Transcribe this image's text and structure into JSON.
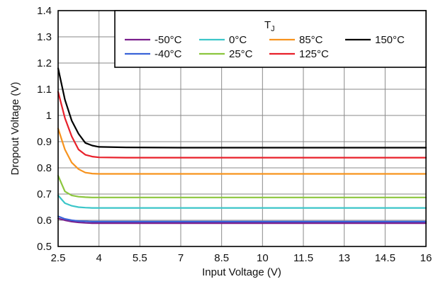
{
  "chart_data": {
    "type": "line",
    "title": "",
    "xlabel": "Input Voltage (V)",
    "ylabel": "Dropout Voltage (V)",
    "xlim": [
      2.5,
      16
    ],
    "ylim": [
      0.5,
      1.4
    ],
    "x_ticks": [
      "2.5",
      "4",
      "5.5",
      "7",
      "8.5",
      "10",
      "11.5",
      "13",
      "14.5",
      "16"
    ],
    "y_ticks": [
      "0.5",
      "0.6",
      "0.7",
      "0.8",
      "0.9",
      "1",
      "1.1",
      "1.2",
      "1.3",
      "1.4"
    ],
    "grid": true,
    "legend": {
      "title": "T",
      "title_subscript": "J",
      "placement": "top-right"
    },
    "series": [
      {
        "name": "-50°C",
        "color": "#7a1f8c",
        "x": [
          2.5,
          2.75,
          3.0,
          3.25,
          3.5,
          3.75,
          4.0,
          5.0,
          7.0,
          10.0,
          13.0,
          16.0
        ],
        "y": [
          0.607,
          0.6,
          0.595,
          0.592,
          0.59,
          0.589,
          0.589,
          0.589,
          0.589,
          0.589,
          0.589,
          0.589
        ]
      },
      {
        "name": "-40°C",
        "color": "#3a63d8",
        "x": [
          2.5,
          2.75,
          3.0,
          3.25,
          3.5,
          3.75,
          4.0,
          5.0,
          7.0,
          10.0,
          13.0,
          16.0
        ],
        "y": [
          0.615,
          0.605,
          0.6,
          0.597,
          0.596,
          0.595,
          0.595,
          0.595,
          0.595,
          0.595,
          0.595,
          0.595
        ]
      },
      {
        "name": "0°C",
        "color": "#3cc6c9",
        "x": [
          2.5,
          2.75,
          3.0,
          3.25,
          3.5,
          3.75,
          4.0,
          5.0,
          7.0,
          10.0,
          13.0,
          16.0
        ],
        "y": [
          0.695,
          0.665,
          0.655,
          0.65,
          0.648,
          0.647,
          0.647,
          0.647,
          0.647,
          0.647,
          0.647,
          0.647
        ]
      },
      {
        "name": "25°C",
        "color": "#8cc63e",
        "x": [
          2.5,
          2.75,
          3.0,
          3.25,
          3.5,
          3.75,
          4.0,
          5.0,
          7.0,
          10.0,
          13.0,
          16.0
        ],
        "y": [
          0.77,
          0.71,
          0.695,
          0.69,
          0.688,
          0.687,
          0.687,
          0.687,
          0.687,
          0.687,
          0.687,
          0.687
        ]
      },
      {
        "name": "85°C",
        "color": "#f7931e",
        "x": [
          2.5,
          2.75,
          3.0,
          3.25,
          3.5,
          3.75,
          4.0,
          5.0,
          7.0,
          10.0,
          13.0,
          16.0
        ],
        "y": [
          0.95,
          0.87,
          0.82,
          0.795,
          0.782,
          0.778,
          0.777,
          0.777,
          0.777,
          0.777,
          0.777,
          0.777
        ]
      },
      {
        "name": "125°C",
        "color": "#e8202a",
        "x": [
          2.5,
          2.75,
          3.0,
          3.25,
          3.5,
          3.75,
          4.0,
          5.0,
          7.0,
          10.0,
          13.0,
          16.0
        ],
        "y": [
          1.09,
          0.99,
          0.92,
          0.87,
          0.85,
          0.843,
          0.84,
          0.839,
          0.839,
          0.839,
          0.839,
          0.839
        ]
      },
      {
        "name": "150°C",
        "color": "#000000",
        "x": [
          2.5,
          2.75,
          3.0,
          3.25,
          3.5,
          3.75,
          4.0,
          5.0,
          7.0,
          10.0,
          13.0,
          16.0
        ],
        "y": [
          1.18,
          1.06,
          0.98,
          0.93,
          0.895,
          0.885,
          0.88,
          0.878,
          0.877,
          0.877,
          0.877,
          0.877
        ]
      }
    ]
  }
}
